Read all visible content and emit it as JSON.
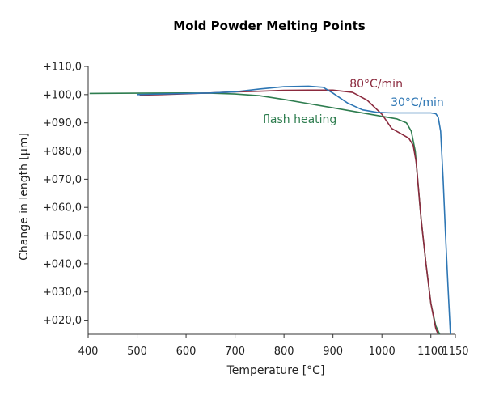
{
  "chart_data": {
    "type": "line",
    "title": "Mold Powder Melting Points",
    "xlabel": "Temperature [°C]",
    "ylabel": "Change in length [µm]",
    "xlim": [
      400,
      1150
    ],
    "ylim": [
      15,
      110
    ],
    "x_ticks": [
      400,
      500,
      600,
      700,
      800,
      900,
      1000,
      1100,
      1150
    ],
    "x_tick_labels": [
      "400",
      "500",
      "600",
      "700",
      "800",
      "900",
      "1000",
      "1100",
      "1150"
    ],
    "y_ticks": [
      20,
      30,
      40,
      50,
      60,
      70,
      80,
      90,
      100,
      110
    ],
    "y_tick_labels": [
      "+020,0",
      "+030,0",
      "+040,0",
      "+050,0",
      "+060,0",
      "+070,0",
      "+080,0",
      "+090,0",
      "+100,0",
      "+110,0"
    ],
    "grid": false,
    "series": [
      {
        "name": "flash heating",
        "color": "#2e7d4f",
        "x": [
          403,
          500,
          600,
          650,
          700,
          750,
          800,
          850,
          900,
          950,
          1000,
          1030,
          1050,
          1060,
          1068,
          1075,
          1080,
          1090,
          1100,
          1110,
          1118
        ],
        "y": [
          100.4,
          100.5,
          100.6,
          100.5,
          100.2,
          99.6,
          98.3,
          96.8,
          95.3,
          93.8,
          92.3,
          91.4,
          90.0,
          87.0,
          80.0,
          66.0,
          56.0,
          40.0,
          26.0,
          18.0,
          15.0
        ]
      },
      {
        "name": "80°C/min",
        "color": "#8b2a3e",
        "x": [
          505,
          550,
          600,
          650,
          700,
          750,
          800,
          850,
          900,
          940,
          970,
          1000,
          1020,
          1040,
          1055,
          1064,
          1070,
          1075,
          1080,
          1090,
          1100,
          1110,
          1115
        ],
        "y": [
          99.8,
          100.0,
          100.3,
          100.6,
          101.0,
          101.2,
          101.5,
          101.6,
          101.6,
          100.8,
          98.0,
          93.0,
          88.0,
          86.0,
          84.5,
          82.0,
          76.0,
          66.0,
          56.0,
          40.0,
          26.0,
          17.0,
          15.0
        ]
      },
      {
        "name": "30°C/min",
        "color": "#2d76b4",
        "x": [
          500,
          550,
          600,
          650,
          700,
          750,
          800,
          850,
          880,
          900,
          930,
          960,
          990,
          1020,
          1050,
          1080,
          1100,
          1110,
          1115,
          1120,
          1125,
          1130,
          1135,
          1140
        ],
        "y": [
          100.0,
          100.2,
          100.4,
          100.6,
          101.0,
          102.0,
          102.8,
          103.0,
          102.6,
          100.5,
          97.0,
          94.6,
          93.7,
          93.5,
          93.5,
          93.5,
          93.5,
          93.2,
          92.0,
          87.0,
          70.0,
          50.0,
          32.0,
          15.0
        ]
      }
    ],
    "series_label_positions": [
      {
        "name": "flash heating",
        "x": 757,
        "y": 89.9
      },
      {
        "name": "80°C/min",
        "x": 934,
        "y": 102.6
      },
      {
        "name": "30°C/min",
        "x": 1018,
        "y": 96.0
      }
    ]
  }
}
